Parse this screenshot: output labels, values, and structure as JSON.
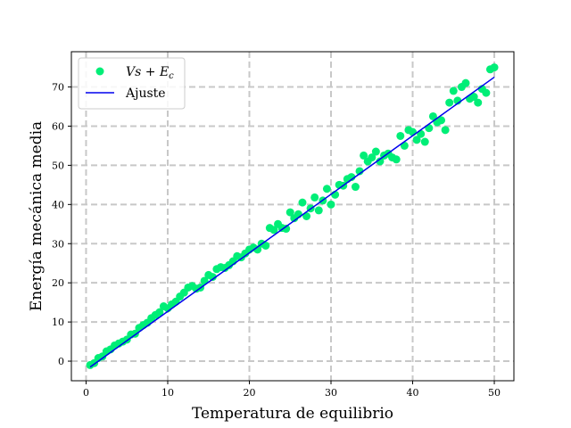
{
  "chart_data": {
    "type": "scatter",
    "title": "",
    "xlabel": "Temperatura de equilibrio",
    "ylabel": "Energía mecánica media",
    "xlim": [
      -1.8,
      52.4
    ],
    "ylim": [
      -5.0,
      79.0
    ],
    "xticks": [
      0,
      10,
      20,
      30,
      40,
      50
    ],
    "yticks": [
      0,
      10,
      20,
      30,
      40,
      50,
      60,
      70
    ],
    "grid": true,
    "legend_position": "top-left",
    "colors": {
      "points": "#00ee77",
      "fit": "#0000ee",
      "grid": "#c8c8c8"
    },
    "series": [
      {
        "name_parts": {
          "a": "Vs",
          "op": " + ",
          "b": "E",
          "sub": "c"
        },
        "kind": "points",
        "x": [
          0.5,
          1.0,
          1.5,
          2.0,
          2.5,
          3.0,
          3.5,
          4.0,
          4.5,
          5.0,
          5.5,
          6.0,
          6.5,
          7.0,
          7.5,
          8.0,
          8.5,
          9.0,
          9.5,
          10.0,
          10.5,
          11.0,
          11.5,
          12.0,
          12.5,
          13.0,
          13.5,
          14.0,
          14.5,
          15.0,
          15.5,
          16.0,
          16.5,
          17.0,
          17.5,
          18.0,
          18.5,
          19.0,
          19.5,
          20.0,
          20.5,
          21.0,
          21.5,
          22.0,
          22.5,
          23.0,
          23.5,
          24.0,
          24.5,
          25.0,
          25.5,
          26.0,
          26.5,
          27.0,
          27.5,
          28.0,
          28.5,
          29.0,
          29.5,
          30.0,
          30.5,
          31.0,
          31.5,
          32.0,
          32.5,
          33.0,
          33.5,
          34.0,
          34.5,
          35.0,
          35.5,
          36.0,
          36.5,
          37.0,
          37.5,
          38.0,
          38.5,
          39.0,
          39.5,
          40.0,
          40.5,
          41.0,
          41.5,
          42.0,
          42.5,
          43.0,
          43.5,
          44.0,
          44.5,
          45.0,
          45.5,
          46.0,
          46.5,
          47.0,
          47.5,
          48.0,
          48.5,
          49.0,
          49.5,
          50.0
        ],
        "y": [
          -1.0,
          -0.5,
          0.8,
          1.2,
          2.5,
          3.0,
          4.0,
          4.5,
          5.0,
          5.5,
          6.8,
          7.0,
          8.5,
          9.2,
          9.8,
          11.0,
          11.8,
          12.5,
          14.0,
          13.5,
          14.5,
          15.2,
          16.5,
          17.5,
          18.8,
          19.2,
          18.5,
          18.8,
          20.5,
          22.0,
          21.5,
          23.5,
          24.0,
          23.8,
          24.5,
          25.5,
          26.8,
          26.5,
          27.5,
          28.5,
          29.0,
          28.5,
          30.0,
          29.5,
          34.0,
          33.5,
          35.0,
          34.0,
          33.8,
          38.0,
          36.5,
          37.5,
          40.5,
          37.0,
          39.0,
          41.8,
          38.5,
          41.0,
          44.0,
          40.0,
          42.5,
          45.0,
          44.8,
          46.5,
          47.0,
          44.5,
          48.5,
          52.5,
          51.0,
          52.0,
          53.5,
          51.0,
          52.5,
          53.0,
          52.0,
          51.5,
          57.5,
          55.0,
          59.0,
          58.5,
          56.5,
          58.0,
          56.0,
          59.5,
          62.5,
          61.0,
          61.5,
          59.0,
          66.0,
          69.0,
          66.5,
          70.0,
          71.0,
          67.0,
          67.5,
          66.0,
          69.5,
          68.5,
          74.5,
          75.0
        ]
      },
      {
        "name": "Ajuste",
        "kind": "line",
        "x": [
          0.5,
          50.0
        ],
        "y": [
          -1.5,
          72.5
        ]
      }
    ]
  }
}
